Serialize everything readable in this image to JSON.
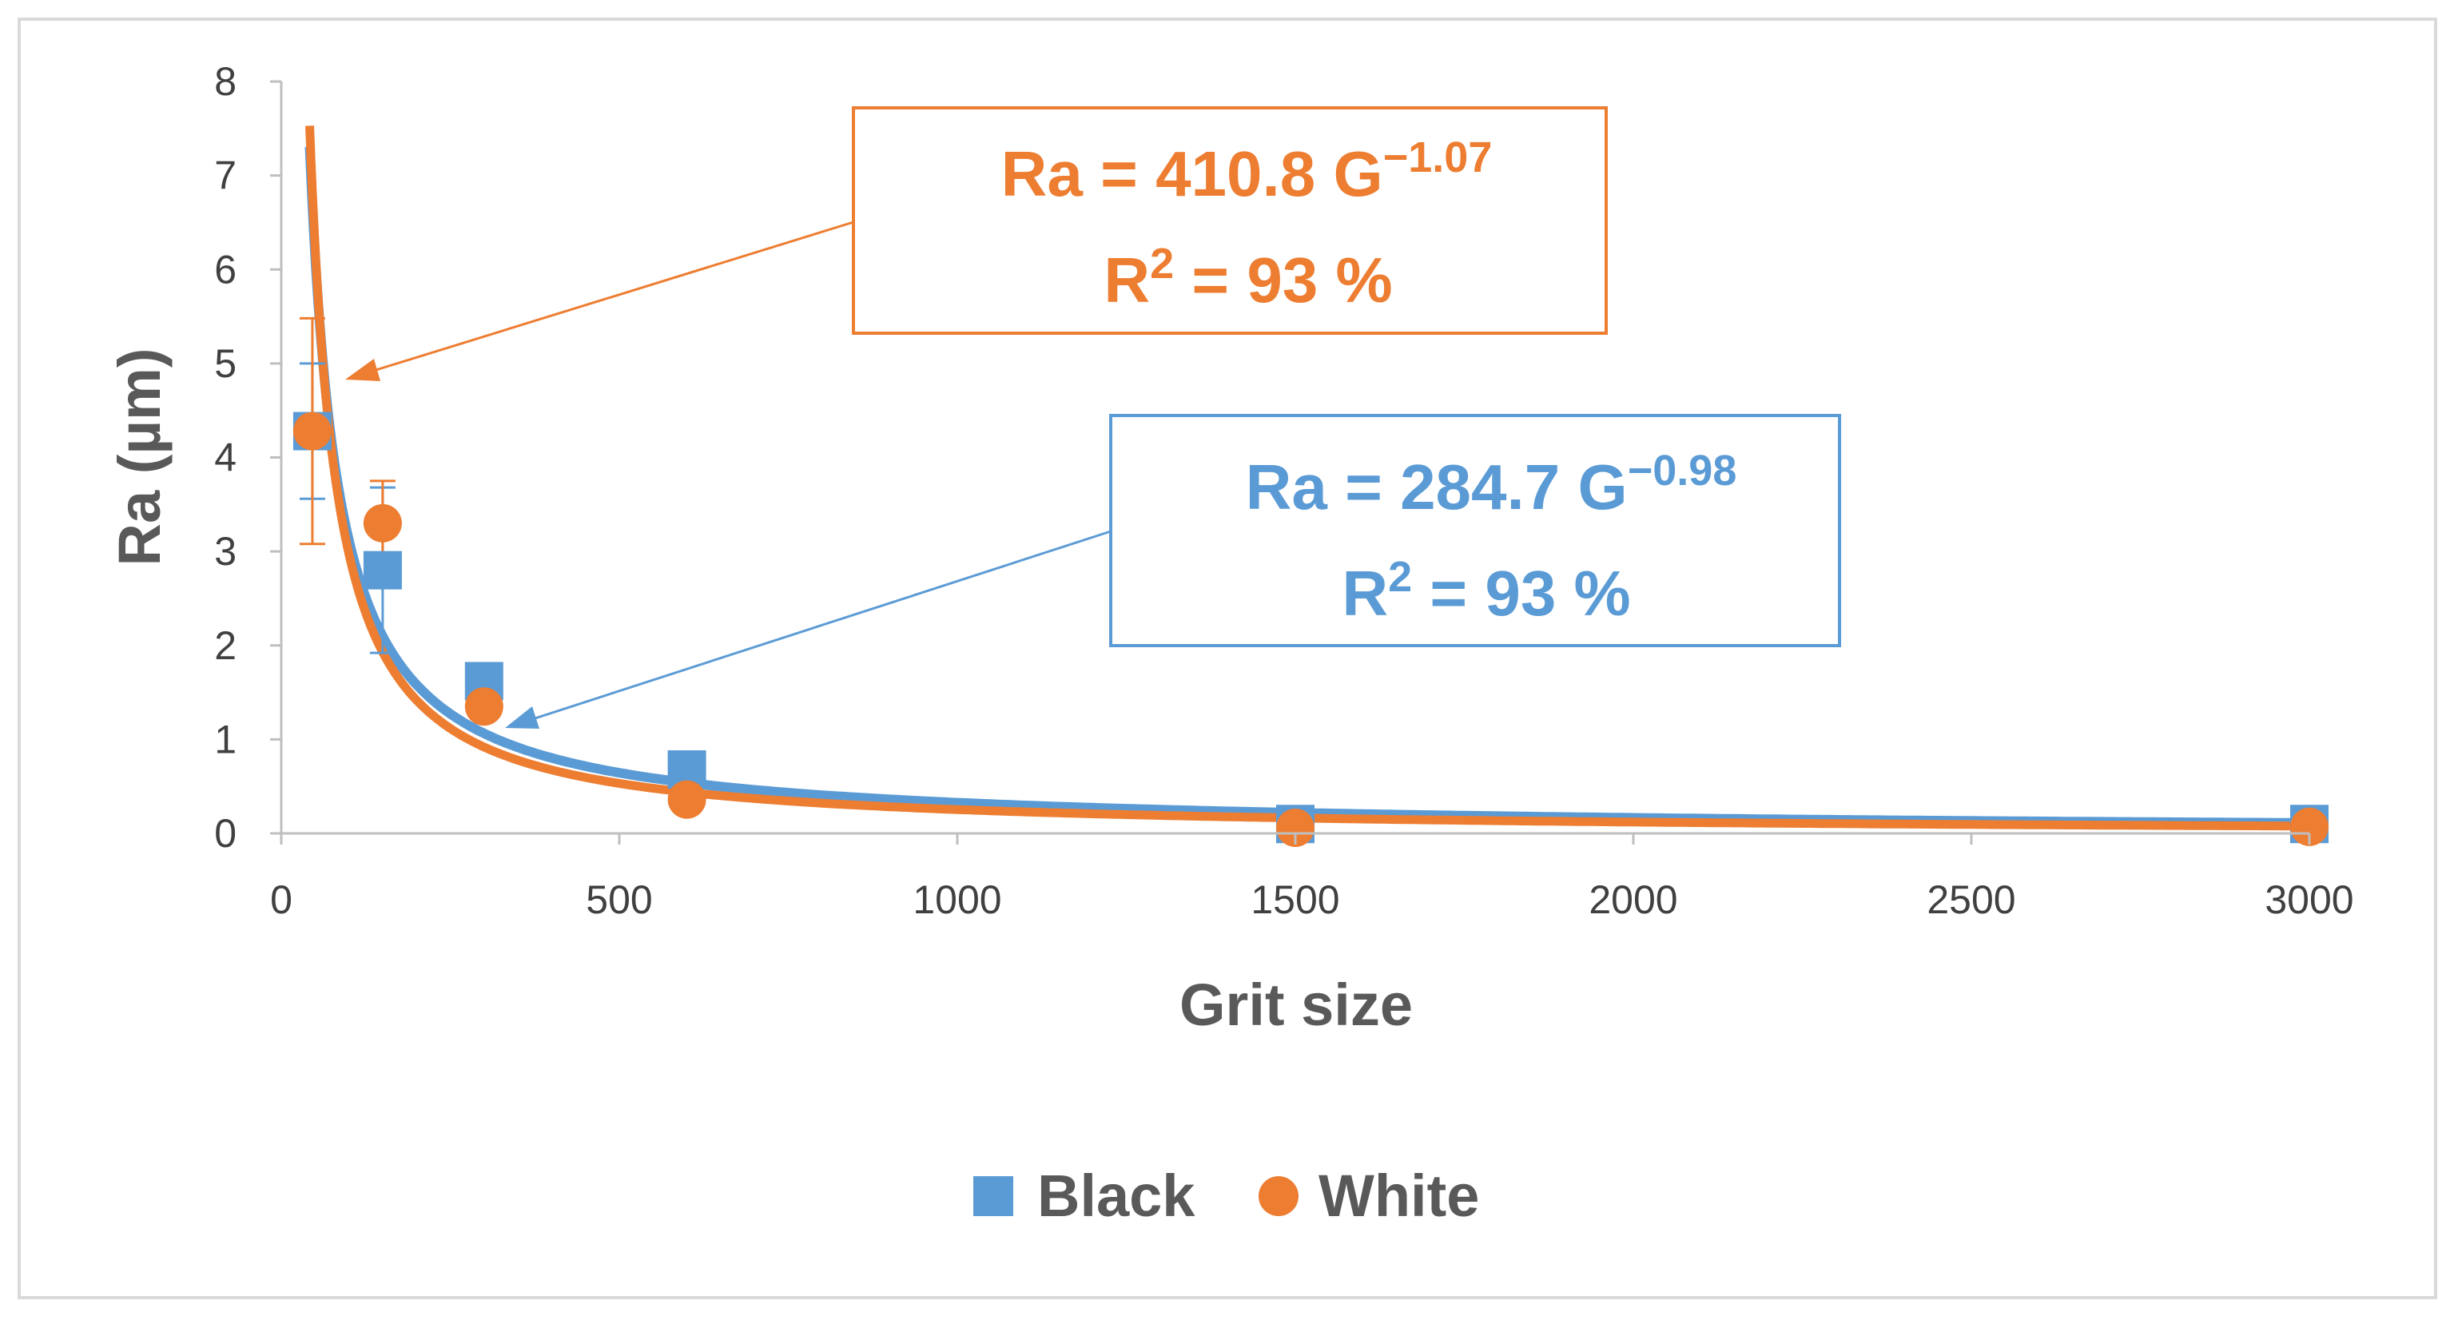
{
  "chart_data": {
    "type": "scatter",
    "xlabel": "Grit size",
    "ylabel": "Ra (µm)",
    "xlim": [
      0,
      3000
    ],
    "ylim": [
      0,
      8
    ],
    "xticks": [
      "0",
      "500",
      "1000",
      "1500",
      "2000",
      "2500",
      "3000"
    ],
    "yticks": [
      "0",
      "1",
      "2",
      "3",
      "4",
      "5",
      "6",
      "7",
      "8"
    ],
    "grid": false,
    "legend_position": "bottom",
    "series": [
      {
        "name": "Black",
        "marker": "square",
        "color": "#5b9bd5",
        "x": [
          46,
          150,
          300,
          600,
          1500,
          3000
        ],
        "y": [
          4.28,
          2.8,
          1.62,
          0.68,
          0.1,
          0.1
        ],
        "error": [
          0.72,
          0.88,
          0.15,
          0.1,
          0.03,
          0.03
        ]
      },
      {
        "name": "White",
        "marker": "circle",
        "color": "#ed7d31",
        "x": [
          46,
          150,
          300,
          600,
          1500,
          3000
        ],
        "y": [
          4.28,
          3.3,
          1.35,
          0.36,
          0.06,
          0.07
        ],
        "error": [
          1.2,
          0.45,
          0.12,
          0.08,
          0.02,
          0.02
        ]
      }
    ],
    "fits": [
      {
        "series": "Black",
        "coef": 284.7,
        "exponent": -0.98,
        "color": "#5b9bd5",
        "equation_prefix": "Ra = 284.7 G",
        "equation_exponent": "−0.98",
        "r2_prefix": "R",
        "r2_sup": "2",
        "r2_value": " = 93 %"
      },
      {
        "series": "White",
        "coef": 410.8,
        "exponent": -1.07,
        "color": "#ed7d31",
        "equation_prefix": "Ra = 410.8 G",
        "equation_exponent": "−1.07",
        "r2_prefix": "R",
        "r2_sup": "2",
        "r2_value": " = 93 %"
      }
    ]
  }
}
